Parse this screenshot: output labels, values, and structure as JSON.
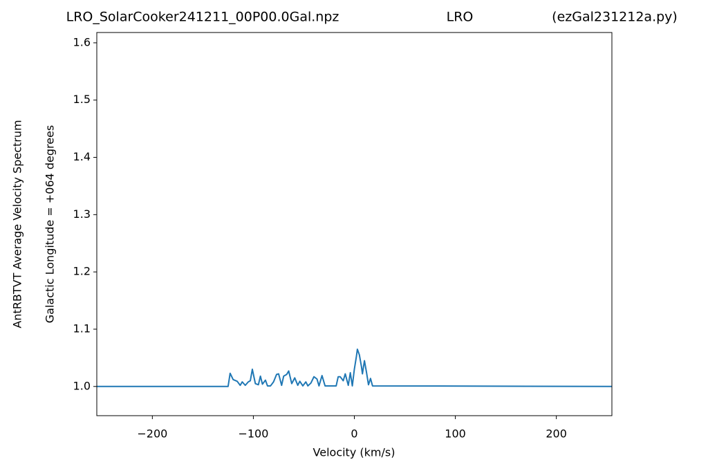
{
  "chart_data": {
    "type": "line",
    "title_left": "LRO_SolarCooker241211_00P00.0Gal.npz",
    "title_center": "LRO",
    "title_right": "(ezGal231212a.py)",
    "xlabel": "Velocity (km/s)",
    "ylabel": "AntRBTVT Average Velocity Spectrum",
    "ylabel2": "Galactic Longitude = +064 degrees",
    "color": "#1f77b4",
    "x": [
      -255,
      -125,
      -123,
      -120,
      -116,
      -113,
      -111,
      -108,
      -105,
      -103,
      -101,
      -98,
      -95,
      -93,
      -91,
      -88,
      -86,
      -83,
      -80,
      -77,
      -75,
      -72,
      -70,
      -67,
      -65,
      -62,
      -59,
      -56,
      -54,
      -51,
      -48,
      -46,
      -43,
      -40,
      -37,
      -35,
      -32,
      -29,
      -18,
      -16,
      -14,
      -11,
      -9,
      -6,
      -4,
      -2,
      0,
      2,
      3,
      5,
      7,
      8,
      10,
      12,
      14,
      16,
      18,
      255
    ],
    "values": [
      1.0,
      1.0,
      1.023,
      1.012,
      1.009,
      1.002,
      1.008,
      1.002,
      1.008,
      1.01,
      1.03,
      1.005,
      1.003,
      1.018,
      1.004,
      1.011,
      1.001,
      1.001,
      1.008,
      1.021,
      1.022,
      1.002,
      1.018,
      1.021,
      1.027,
      1.005,
      1.015,
      1.002,
      1.009,
      1.001,
      1.008,
      1.001,
      1.006,
      1.017,
      1.013,
      1.001,
      1.019,
      1.001,
      1.001,
      1.017,
      1.017,
      1.01,
      1.022,
      1.002,
      1.024,
      1.001,
      1.03,
      1.052,
      1.065,
      1.055,
      1.035,
      1.022,
      1.045,
      1.025,
      1.003,
      1.014,
      1.001,
      1.0
    ],
    "xlim": [
      -255,
      255
    ],
    "ylim": [
      0.949,
      1.618
    ],
    "xticks": [
      {
        "value": -200,
        "label": "−200"
      },
      {
        "value": -100,
        "label": "−100"
      },
      0,
      100,
      200
    ],
    "yticks": [
      {
        "value": 1,
        "label": "1.0"
      },
      1.1,
      1.2,
      1.3,
      1.4,
      1.5,
      1.6
    ]
  }
}
